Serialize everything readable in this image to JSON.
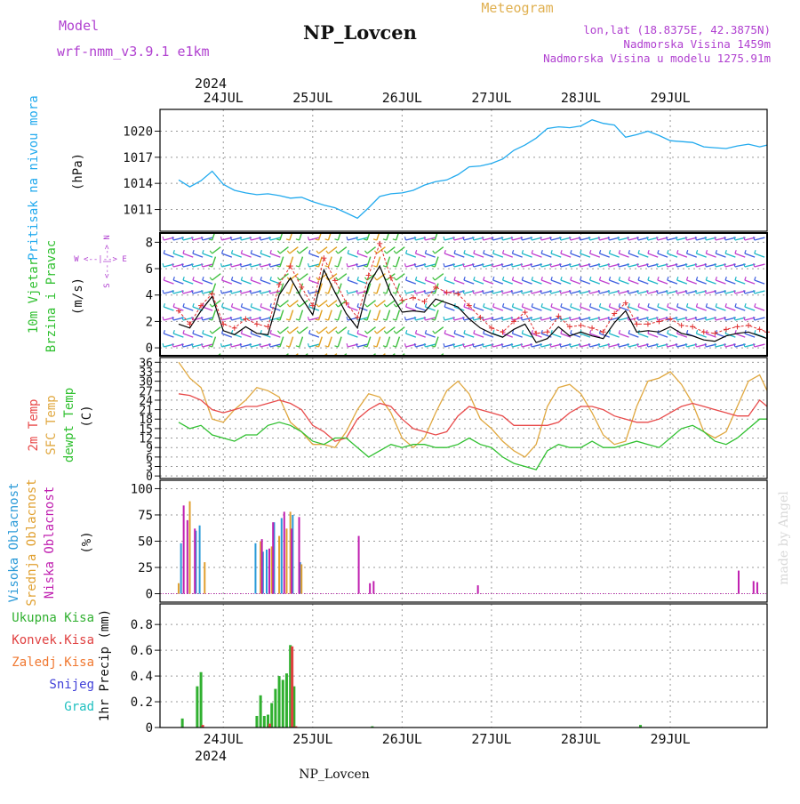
{
  "header": {
    "model_label": "Model",
    "model_name": "wrf-nmm_v3.9.1 e1km",
    "station": "NP_Lovcen",
    "product": "Meteogram",
    "lonlat": "lon,lat (18.8375E, 42.3875N)",
    "elev": "Nadmorska Visina 1459m",
    "elev_model": "Nadmorska Visina u modelu 1275.91m",
    "year": "2024",
    "footer_station": "NP_Lovcen",
    "credit": "made by Angel"
  },
  "colors": {
    "pressure": "#22aaee",
    "temp2m": "#e84a4a",
    "sfc": "#e0a840",
    "dew": "#30c030",
    "high": "#2a9ad8",
    "mid": "#e0a030",
    "low": "#c020b0",
    "total": "#30b030",
    "conv": "#e04040",
    "frozen": "#f07830",
    "snow": "#4040d8",
    "grad": "#20c0c0",
    "wind_mod": "#c040d0",
    "gust": "#e03030"
  },
  "chart_data": [
    {
      "type": "line",
      "title": "Pritisak na nivou mora",
      "ylabel": "(hPa)",
      "ylim": [
        1008.5,
        1022.5
      ],
      "yticks": [
        "1011",
        "1014",
        "1017",
        "1020"
      ],
      "x_ticks": [
        "24JUL",
        "25JUL",
        "26JUL",
        "27JUL",
        "28JUL",
        "29JUL"
      ],
      "series": [
        {
          "name": "Pritisak na nivou mora",
          "x_hours": [
            0,
            3,
            6,
            9,
            12,
            15,
            18,
            21,
            24,
            27,
            30,
            33,
            36,
            39,
            42,
            45,
            48,
            51,
            54,
            57,
            60,
            63,
            66,
            69,
            72,
            75,
            78,
            81,
            84,
            87,
            90,
            93,
            96,
            99,
            102,
            105,
            108,
            111,
            114,
            117,
            120,
            123,
            126,
            129,
            132,
            135,
            138,
            141,
            144,
            147,
            150,
            153,
            156,
            158
          ],
          "values": [
            1014.4,
            1013.6,
            1014.3,
            1015.4,
            1013.9,
            1013.2,
            1012.9,
            1012.7,
            1012.8,
            1012.6,
            1012.3,
            1012.4,
            1011.9,
            1011.5,
            1011.2,
            1010.6,
            1010.0,
            1011.2,
            1012.5,
            1012.8,
            1012.9,
            1013.2,
            1013.8,
            1014.2,
            1014.4,
            1015.0,
            1015.9,
            1016.0,
            1016.3,
            1016.8,
            1017.8,
            1018.4,
            1019.2,
            1020.3,
            1020.5,
            1020.4,
            1020.6,
            1021.3,
            1020.9,
            1020.7,
            1019.3,
            1019.6,
            1020.0,
            1019.5,
            1018.9,
            1018.8,
            1018.7,
            1018.2,
            1018.1,
            1018.0,
            1018.3,
            1018.5,
            1018.2,
            1018.4
          ]
        }
      ]
    },
    {
      "type": "line",
      "title": "10m Vjetar Brzina i Pravac",
      "ylabel": "(m/s)",
      "ylim": [
        -0.6,
        8.7
      ],
      "yticks": [
        "0",
        "2",
        "4",
        "6",
        "8"
      ],
      "compass": "W <--|--> E",
      "compass_v": "S <--|--> N",
      "series": [
        {
          "name": "speed",
          "x_hours": [
            0,
            3,
            6,
            9,
            12,
            15,
            18,
            21,
            24,
            27,
            30,
            33,
            36,
            39,
            42,
            45,
            48,
            51,
            54,
            57,
            60,
            63,
            66,
            69,
            72,
            75,
            78,
            81,
            84,
            87,
            90,
            93,
            96,
            99,
            102,
            105,
            108,
            111,
            114,
            117,
            120,
            123,
            126,
            129,
            132,
            135,
            138,
            141,
            144,
            147,
            150,
            153,
            156,
            158
          ],
          "values": [
            1.8,
            1.5,
            2.8,
            3.9,
            1.3,
            1.0,
            1.6,
            1.1,
            1.0,
            4.0,
            5.3,
            3.8,
            2.5,
            5.9,
            4.2,
            2.6,
            1.5,
            4.8,
            6.2,
            4.1,
            2.7,
            2.8,
            2.7,
            3.7,
            3.4,
            3.1,
            2.2,
            1.5,
            1.1,
            0.8,
            1.4,
            1.8,
            0.4,
            0.7,
            1.6,
            0.9,
            1.2,
            0.9,
            0.7,
            1.9,
            2.8,
            1.2,
            1.3,
            1.2,
            1.6,
            1.1,
            0.9,
            0.6,
            0.5,
            0.9,
            1.1,
            1.2,
            0.9,
            0.7
          ]
        },
        {
          "name": "gust",
          "x_hours": [
            0,
            3,
            6,
            9,
            12,
            15,
            18,
            21,
            24,
            27,
            30,
            33,
            36,
            39,
            42,
            45,
            48,
            51,
            54,
            57,
            60,
            63,
            66,
            69,
            72,
            75,
            78,
            81,
            84,
            87,
            90,
            93,
            96,
            99,
            102,
            105,
            108,
            111,
            114,
            117,
            120,
            123,
            126,
            129,
            132,
            135,
            138,
            141,
            144,
            147,
            150,
            153,
            156,
            158
          ],
          "values": [
            2.8,
            1.8,
            3.2,
            4.1,
            1.8,
            1.5,
            2.2,
            1.8,
            1.6,
            4.8,
            6.2,
            4.6,
            3.2,
            6.8,
            5.1,
            3.4,
            2.3,
            5.5,
            7.9,
            5.3,
            3.6,
            3.8,
            3.5,
            4.6,
            4.2,
            4.1,
            3.2,
            2.3,
            1.5,
            1.2,
            2.0,
            2.7,
            1.1,
            1.2,
            2.4,
            1.6,
            1.7,
            1.5,
            1.2,
            2.6,
            3.4,
            1.8,
            1.8,
            2.0,
            2.2,
            1.7,
            1.6,
            1.2,
            1.1,
            1.4,
            1.6,
            1.7,
            1.4,
            1.2
          ]
        }
      ]
    },
    {
      "type": "line",
      "title": "2m Temp / SFC Temp / dewpt Temp",
      "ylabel": "(C)",
      "ylim": [
        -0.8,
        37.5
      ],
      "yticks": [
        "0",
        "3",
        "6",
        "9",
        "12",
        "15",
        "18",
        "21",
        "24",
        "27",
        "30",
        "33",
        "36"
      ],
      "series": [
        {
          "name": "2m Temp",
          "x_hours": [
            0,
            3,
            6,
            9,
            12,
            15,
            18,
            21,
            24,
            27,
            30,
            33,
            36,
            39,
            42,
            45,
            48,
            51,
            54,
            57,
            60,
            63,
            66,
            69,
            72,
            75,
            78,
            81,
            84,
            87,
            90,
            93,
            96,
            99,
            102,
            105,
            108,
            111,
            114,
            117,
            120,
            123,
            126,
            129,
            132,
            135,
            138,
            141,
            144,
            147,
            150,
            153,
            156,
            158
          ],
          "values": [
            26,
            25.5,
            24,
            21,
            20,
            21,
            22,
            22,
            23,
            24,
            23,
            21,
            16,
            14,
            11,
            12,
            18,
            21,
            23,
            22,
            18,
            15,
            14,
            13,
            14,
            19,
            22,
            21,
            20,
            19,
            16,
            16,
            16,
            16,
            17,
            20,
            22,
            22,
            21,
            19,
            18,
            17,
            17,
            18,
            20,
            22,
            23,
            22,
            21,
            20,
            19,
            19,
            24,
            22
          ]
        },
        {
          "name": "SFC Temp",
          "x_hours": [
            0,
            3,
            6,
            9,
            12,
            15,
            18,
            21,
            24,
            27,
            30,
            33,
            36,
            39,
            42,
            45,
            48,
            51,
            54,
            57,
            60,
            63,
            66,
            69,
            72,
            75,
            78,
            81,
            84,
            87,
            90,
            93,
            96,
            99,
            102,
            105,
            108,
            111,
            114,
            117,
            120,
            123,
            126,
            129,
            132,
            135,
            138,
            141,
            144,
            147,
            150,
            153,
            156,
            158
          ],
          "values": [
            36,
            31,
            28,
            18,
            17,
            21,
            24,
            28,
            27,
            25,
            17,
            14,
            10,
            10,
            9,
            14,
            21,
            26,
            25,
            20,
            12,
            9,
            12,
            20,
            27,
            30,
            26,
            18,
            15,
            11,
            8,
            6,
            10,
            22,
            28,
            29,
            26,
            20,
            13,
            10,
            11,
            22,
            30,
            31,
            33,
            29,
            23,
            14,
            12,
            14,
            22,
            30,
            32,
            27
          ]
        },
        {
          "name": "dewpt Temp",
          "x_hours": [
            0,
            3,
            6,
            9,
            12,
            15,
            18,
            21,
            24,
            27,
            30,
            33,
            36,
            39,
            42,
            45,
            48,
            51,
            54,
            57,
            60,
            63,
            66,
            69,
            72,
            75,
            78,
            81,
            84,
            87,
            90,
            93,
            96,
            99,
            102,
            105,
            108,
            111,
            114,
            117,
            120,
            123,
            126,
            129,
            132,
            135,
            138,
            141,
            144,
            147,
            150,
            153,
            156,
            158
          ],
          "values": [
            17,
            15,
            16,
            13,
            12,
            11,
            13,
            13,
            16,
            17,
            16,
            14,
            11,
            10,
            12,
            12,
            9,
            6,
            8,
            10,
            9,
            10,
            10,
            9,
            9,
            10,
            12,
            10,
            9,
            6,
            4,
            3,
            2,
            8,
            10,
            9,
            9,
            11,
            9,
            9,
            10,
            11,
            10,
            9,
            12,
            15,
            16,
            14,
            11,
            10,
            12,
            15,
            18,
            18
          ]
        }
      ]
    },
    {
      "type": "bar",
      "title": "Visoka / Srednja / Niska Oblacnost",
      "ylabel": "(%)",
      "ylim": [
        -8,
        108
      ],
      "yticks": [
        "0",
        "25",
        "50",
        "75",
        "100"
      ],
      "series": [
        {
          "name": "Visoka Oblacnost",
          "bars": [
            [
              1,
              48
            ],
            [
              5,
              60
            ],
            [
              6,
              65
            ],
            [
              21,
              48
            ],
            [
              23,
              40
            ],
            [
              24,
              42
            ],
            [
              26,
              68
            ],
            [
              28,
              72
            ],
            [
              31,
              75
            ],
            [
              33,
              30
            ]
          ]
        },
        {
          "name": "Srednja Oblacnost",
          "bars": [
            [
              0,
              10
            ],
            [
              3,
              88
            ],
            [
              7,
              30
            ],
            [
              22,
              50
            ],
            [
              25,
              45
            ],
            [
              27,
              55
            ],
            [
              29,
              62
            ],
            [
              30,
              78
            ],
            [
              33,
              28
            ]
          ]
        },
        {
          "name": "Niska Oblacnost",
          "bars": [
            [
              1,
              84
            ],
            [
              2,
              70
            ],
            [
              4,
              62
            ],
            [
              22,
              52
            ],
            [
              24,
              43
            ],
            [
              25,
              68
            ],
            [
              28,
              78
            ],
            [
              30,
              62
            ],
            [
              32,
              73
            ],
            [
              48,
              55
            ],
            [
              51,
              10
            ],
            [
              52,
              12
            ],
            [
              80,
              8
            ],
            [
              150,
              22
            ],
            [
              154,
              12
            ],
            [
              155,
              11
            ]
          ]
        }
      ]
    },
    {
      "type": "bar",
      "title": "1hr Precip",
      "ylabel": "1hr Precip (mm)",
      "ylim": [
        0,
        0.96
      ],
      "yticks": [
        "0",
        "0.2",
        "0.4",
        "0.6",
        "0.8"
      ],
      "x_ticks": [
        "24JUL",
        "25JUL",
        "26JUL",
        "27JUL",
        "28JUL",
        "29JUL"
      ],
      "legend": [
        "Ukupna Kisa",
        "Konvek.Kisa",
        "Zaledj.Kisa",
        "Snijeg",
        "Grad"
      ],
      "series": [
        {
          "name": "Ukupna Kisa",
          "bars": [
            [
              1,
              0.07
            ],
            [
              5,
              0.32
            ],
            [
              6,
              0.43
            ],
            [
              21,
              0.09
            ],
            [
              22,
              0.25
            ],
            [
              23,
              0.09
            ],
            [
              24,
              0.1
            ],
            [
              25,
              0.19
            ],
            [
              26,
              0.3
            ],
            [
              27,
              0.4
            ],
            [
              28,
              0.37
            ],
            [
              29,
              0.42
            ],
            [
              30,
              0.64
            ],
            [
              31,
              0.32
            ],
            [
              52,
              0.01
            ],
            [
              124,
              0.02
            ]
          ]
        },
        {
          "name": "Konvek.Kisa",
          "bars": [
            [
              6,
              0.02
            ],
            [
              24,
              0.03
            ],
            [
              30,
              0.63
            ],
            [
              31,
              0.01
            ]
          ]
        }
      ]
    }
  ]
}
